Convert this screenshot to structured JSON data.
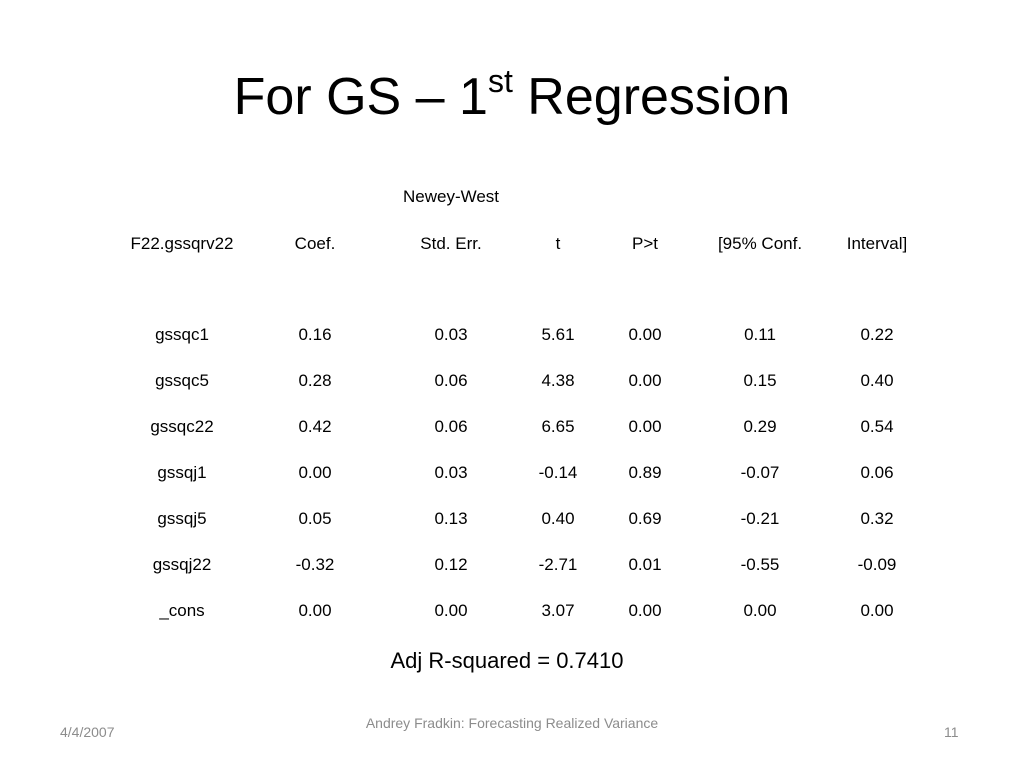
{
  "header": {
    "title": "For GS – 1",
    "title_superscript": "st",
    "title_end": " Regression"
  },
  "table": {
    "group_header": "Newey-West",
    "columns": [
      "F22.gssqrv22",
      "Coef.",
      "Std. Err.",
      "t",
      "P>t",
      "[95% Conf.",
      "Interval]"
    ],
    "rows": [
      [
        "gssqc1",
        "0.16",
        "0.03",
        "5.61",
        "0.00",
        "0.11",
        "0.22"
      ],
      [
        "gssqc5",
        "0.28",
        "0.06",
        "4.38",
        "0.00",
        "0.15",
        "0.40"
      ],
      [
        "gssqc22",
        "0.42",
        "0.06",
        "6.65",
        "0.00",
        "0.29",
        "0.54"
      ],
      [
        "gssqj1",
        "0.00",
        "0.03",
        "-0.14",
        "0.89",
        "-0.07",
        "0.06"
      ],
      [
        "gssqj5",
        "0.05",
        "0.13",
        "0.40",
        "0.69",
        "-0.21",
        "0.32"
      ],
      [
        "gssqj22",
        "-0.32",
        "0.12",
        "-2.71",
        "0.01",
        "-0.55",
        "-0.09"
      ],
      [
        "_cons",
        "0.00",
        "0.00",
        "3.07",
        "0.00",
        "0.00",
        "0.00"
      ]
    ]
  },
  "summary": "Adj R-squared =  0.7410",
  "footer": {
    "date": "4/4/2007",
    "author": "Andrey Fradkin: Forecasting Realized Variance",
    "page": "11"
  }
}
